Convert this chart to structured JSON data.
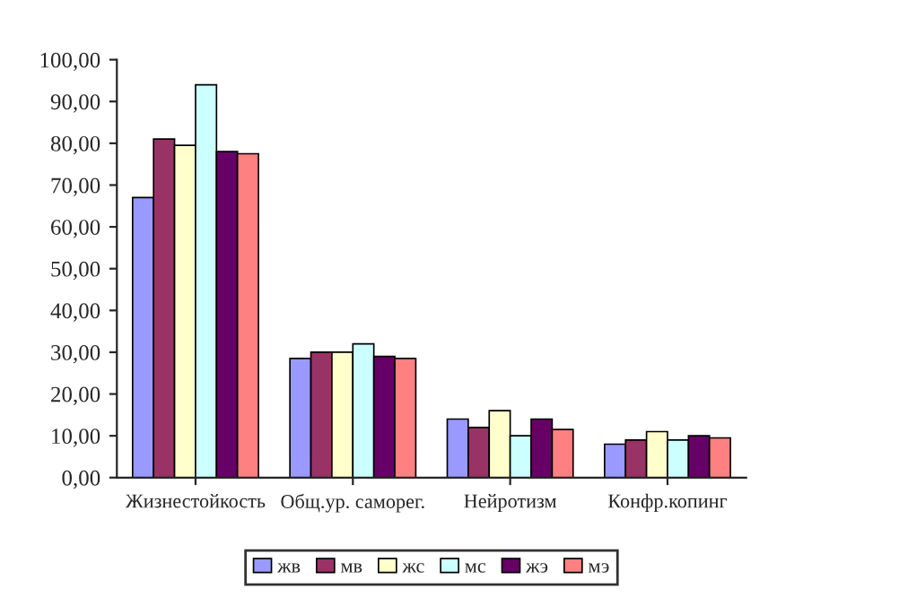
{
  "chart_data": {
    "type": "bar",
    "categories": [
      "Жизнестойкость",
      "Общ.ур. саморег.",
      "Нейротизм",
      "Конфр.копинг"
    ],
    "series": [
      {
        "name": "жв",
        "color": "#9999ff",
        "values": [
          67,
          28.5,
          14,
          8
        ]
      },
      {
        "name": "мв",
        "color": "#993366",
        "values": [
          81,
          30,
          12,
          9
        ]
      },
      {
        "name": "жс",
        "color": "#ffffcc",
        "values": [
          79.5,
          30,
          16,
          11
        ]
      },
      {
        "name": "мс",
        "color": "#ccffff",
        "values": [
          94,
          32,
          10,
          9
        ]
      },
      {
        "name": "жэ",
        "color": "#660066",
        "values": [
          78,
          29,
          14,
          10
        ]
      },
      {
        "name": "мэ",
        "color": "#ff8080",
        "values": [
          77.5,
          28.5,
          11.5,
          9.5
        ]
      }
    ],
    "ylim": [
      0,
      100
    ],
    "yticks": [
      {
        "value": 0,
        "label": "0,00"
      },
      {
        "value": 10,
        "label": "10,00"
      },
      {
        "value": 20,
        "label": "20,00"
      },
      {
        "value": 30,
        "label": "30,00"
      },
      {
        "value": 40,
        "label": "40,00"
      },
      {
        "value": 50,
        "label": "50,00"
      },
      {
        "value": 60,
        "label": "60,00"
      },
      {
        "value": 70,
        "label": "70,00"
      },
      {
        "value": 80,
        "label": "80,00"
      },
      {
        "value": 90,
        "label": "90,00"
      },
      {
        "value": 100,
        "label": "100,00"
      }
    ],
    "grid": false,
    "legend": "bottom"
  }
}
